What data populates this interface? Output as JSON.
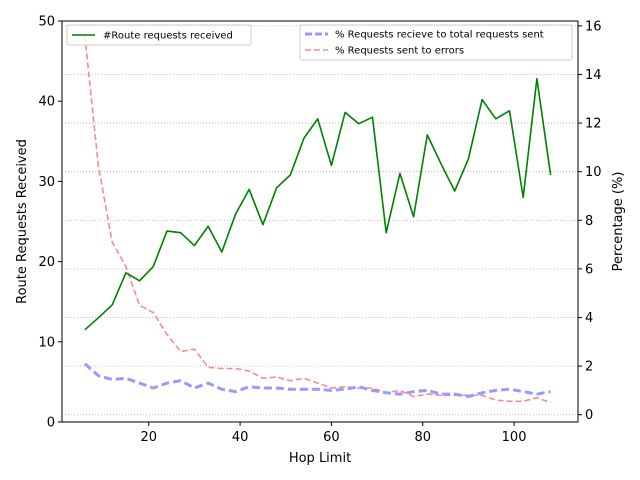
{
  "chart_data": {
    "type": "line",
    "x_axis": {
      "label": "Hop Limit",
      "range": [
        1,
        114
      ],
      "ticks": [
        20,
        40,
        60,
        80,
        100
      ],
      "tick_labels": [
        "20",
        "40",
        "60",
        "80",
        "100"
      ]
    },
    "y_axis_left": {
      "label": "Route Requests Received",
      "range": [
        0,
        50
      ],
      "ticks": [
        0,
        10,
        20,
        30,
        40,
        50
      ],
      "tick_labels": [
        "0",
        "10",
        "20",
        "30",
        "40",
        "50"
      ]
    },
    "y_axis_right": {
      "label": "Percentage (%)",
      "range": [
        -0.3,
        16.2
      ],
      "ticks": [
        0,
        2,
        4,
        6,
        8,
        10,
        12,
        14,
        16
      ],
      "tick_labels": [
        "0",
        "2",
        "4",
        "6",
        "8",
        "10",
        "12",
        "14",
        "16"
      ]
    },
    "grid": "horizontal dotted lines at right-axis ticks",
    "x": [
      6,
      9,
      12,
      15,
      18,
      21,
      24,
      27,
      30,
      33,
      36,
      39,
      42,
      45,
      48,
      51,
      54,
      57,
      60,
      63,
      66,
      69,
      72,
      75,
      78,
      81,
      84,
      87,
      90,
      93,
      96,
      99,
      102,
      105,
      108
    ],
    "series": [
      {
        "name": "#Route requests received",
        "axis": "left",
        "color": "#008000",
        "style": "solid",
        "values": [
          11.5,
          13.0,
          14.6,
          18.6,
          17.6,
          19.4,
          23.8,
          23.6,
          22.0,
          24.4,
          21.2,
          25.9,
          29.0,
          24.6,
          29.2,
          30.8,
          35.4,
          37.8,
          32.0,
          38.6,
          37.2,
          38.0,
          23.6,
          31.0,
          25.6,
          35.8,
          32.2,
          28.8,
          32.8,
          40.2,
          37.8,
          38.8,
          28.0,
          42.8,
          30.8
        ]
      },
      {
        "name": "% Requests recieve to total requests sent",
        "axis": "right",
        "color": "#9999ff",
        "style": "dashed",
        "values": [
          2.1,
          1.6,
          1.45,
          1.5,
          1.3,
          1.1,
          1.3,
          1.4,
          1.1,
          1.3,
          1.05,
          0.95,
          1.15,
          1.1,
          1.1,
          1.05,
          1.05,
          1.05,
          1.0,
          1.05,
          1.15,
          1.0,
          0.9,
          0.85,
          0.95,
          1.0,
          0.85,
          0.85,
          0.75,
          0.9,
          1.0,
          1.05,
          0.95,
          0.85,
          0.95
        ]
      },
      {
        "name": "% Requests sent to errors",
        "axis": "right",
        "color": "#ff8888",
        "style": "dashed",
        "values": [
          15.6,
          10.2,
          7.1,
          6.1,
          4.5,
          4.2,
          3.3,
          2.6,
          2.7,
          1.95,
          1.9,
          1.9,
          1.8,
          1.5,
          1.55,
          1.4,
          1.5,
          1.3,
          1.1,
          1.15,
          1.1,
          1.1,
          0.9,
          1.0,
          0.75,
          0.85,
          0.8,
          0.8,
          0.8,
          0.8,
          0.6,
          0.55,
          0.55,
          0.7,
          0.5
        ]
      }
    ],
    "legends": {
      "left": [
        "#Route requests received"
      ],
      "right": [
        "% Requests recieve to total requests sent",
        "% Requests sent to errors"
      ]
    }
  }
}
